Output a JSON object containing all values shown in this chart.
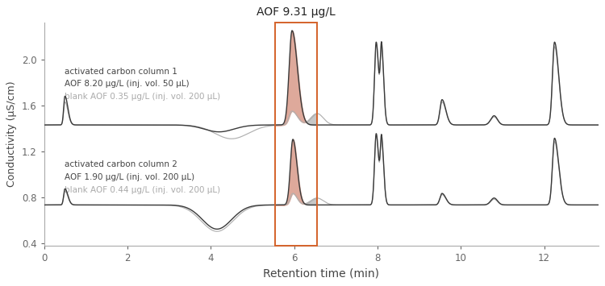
{
  "title": "AOF 9.31 μg/L",
  "xlabel": "Retention time (min)",
  "ylabel": "Conductivity (μS/cm)",
  "xlim": [
    0.0,
    13.3
  ],
  "ylim": [
    0.38,
    2.32
  ],
  "yticks": [
    0.4,
    0.8,
    1.2,
    1.6,
    2.0
  ],
  "col1_label1": "activated carbon column 1",
  "col1_label2": "AOF 8.20 μg/L (inj. vol. 50 μL)",
  "col1_label3": "blank AOF 0.35 μg/L (inj. vol. 200 μL)",
  "col2_label1": "activated carbon column 2",
  "col2_label2": "AOF 1.90 μg/L (inj. vol. 200 μL)",
  "col2_label3": "blank AOF 0.44 μg/L (inj. vol. 200 μL)",
  "baseline_col1": 1.43,
  "baseline_col2": 0.735,
  "highlight_xmin": 5.55,
  "highlight_xmax": 6.55,
  "highlight_color": "#d4622a",
  "fill_color": "#dba090",
  "line_color_dark": "#3a3a3a",
  "line_color_grey": "#b0b0b0",
  "background_color": "#ffffff"
}
